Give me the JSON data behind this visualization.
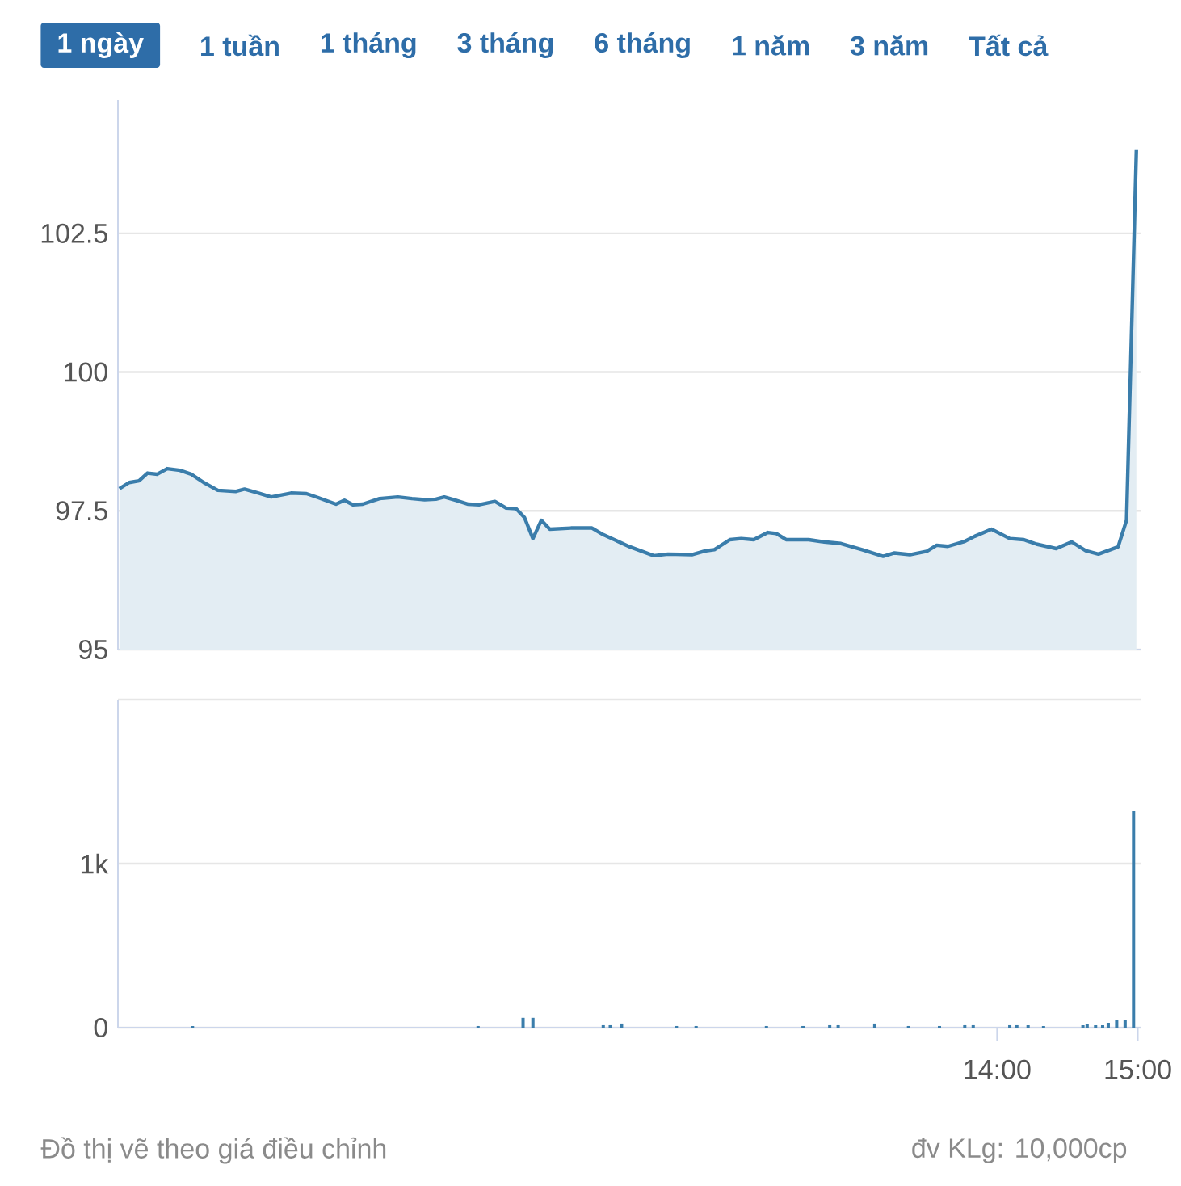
{
  "chart_data": [
    {
      "type": "area",
      "color": "#3a7dab",
      "grid": "y",
      "tick_labels": "y",
      "annotations": [
        "1 ngày",
        "1 tuần",
        "1 tháng",
        "3 tháng",
        "6 tháng",
        "1 năm",
        "3 năm",
        "Tất cả"
      ],
      "xlim": [
        7.75,
        15.02
      ],
      "ylim": [
        95,
        104.9
      ],
      "yticks": [
        95,
        97.5,
        100,
        102.5
      ],
      "x": [
        7.76,
        7.83,
        7.9,
        7.96,
        8.03,
        8.1,
        8.19,
        8.27,
        8.36,
        8.46,
        8.59,
        8.65,
        8.75,
        8.84,
        8.98,
        9.09,
        9.17,
        9.3,
        9.36,
        9.42,
        9.49,
        9.61,
        9.74,
        9.84,
        9.93,
        10.01,
        10.07,
        10.15,
        10.24,
        10.32,
        10.43,
        10.51,
        10.58,
        10.64,
        10.7,
        10.76,
        10.82,
        10.97,
        11.12,
        11.2,
        11.39,
        11.56,
        11.66,
        11.83,
        11.93,
        11.99,
        12.1,
        12.18,
        12.27,
        12.37,
        12.43,
        12.5,
        12.66,
        12.77,
        12.89,
        13.04,
        13.19,
        13.27,
        13.38,
        13.5,
        13.57,
        13.65,
        13.77,
        13.84,
        13.96,
        14.09,
        14.19,
        14.28,
        14.42,
        14.53,
        14.63,
        14.72,
        14.86,
        14.92,
        14.99
      ],
      "values": [
        97.9,
        98.01,
        98.04,
        98.18,
        98.16,
        98.26,
        98.23,
        98.16,
        98.01,
        97.87,
        97.85,
        97.89,
        97.82,
        97.75,
        97.82,
        97.81,
        97.74,
        97.62,
        97.69,
        97.61,
        97.62,
        97.72,
        97.75,
        97.72,
        97.7,
        97.71,
        97.75,
        97.69,
        97.62,
        97.61,
        97.67,
        97.55,
        97.54,
        97.38,
        97.0,
        97.33,
        97.17,
        97.19,
        97.19,
        97.07,
        96.85,
        96.69,
        96.72,
        96.71,
        96.78,
        96.8,
        96.98,
        97.0,
        96.98,
        97.11,
        97.09,
        96.98,
        96.98,
        96.94,
        96.91,
        96.8,
        96.68,
        96.74,
        96.71,
        96.77,
        96.88,
        96.86,
        96.95,
        97.04,
        97.17,
        97.0,
        96.98,
        96.9,
        96.82,
        96.94,
        96.78,
        96.72,
        96.85,
        97.33,
        104.0
      ]
    },
    {
      "type": "bar",
      "color": "#3a7dab",
      "grid": "y",
      "annotations": [
        "Đồ thị vẽ theo giá điều chỉnh",
        "đv KLg: 10,000cp"
      ],
      "xlim": [
        7.75,
        15.02
      ],
      "xticks": [
        {
          "value": 14,
          "label": "14:00"
        },
        {
          "value": 15,
          "label": "15:00"
        }
      ],
      "ylim": [
        0,
        2000
      ],
      "yticks": [
        0,
        {
          "value": 1000,
          "label": "1k"
        },
        {
          "value": 2000,
          "label": null
        }
      ],
      "x": [
        8.28,
        10.31,
        10.63,
        10.7,
        11.2,
        11.25,
        11.33,
        11.72,
        11.86,
        12.36,
        12.62,
        12.81,
        12.87,
        13.13,
        13.37,
        13.59,
        13.77,
        13.83,
        14.09,
        14.14,
        14.22,
        14.33,
        14.61,
        14.64,
        14.7,
        14.75,
        14.79,
        14.85,
        14.91,
        14.97
      ],
      "values": [
        10,
        10,
        60,
        60,
        15,
        15,
        25,
        10,
        10,
        10,
        10,
        15,
        15,
        25,
        10,
        10,
        15,
        15,
        15,
        15,
        15,
        10,
        15,
        25,
        15,
        15,
        30,
        45,
        45,
        1320
      ]
    }
  ]
}
